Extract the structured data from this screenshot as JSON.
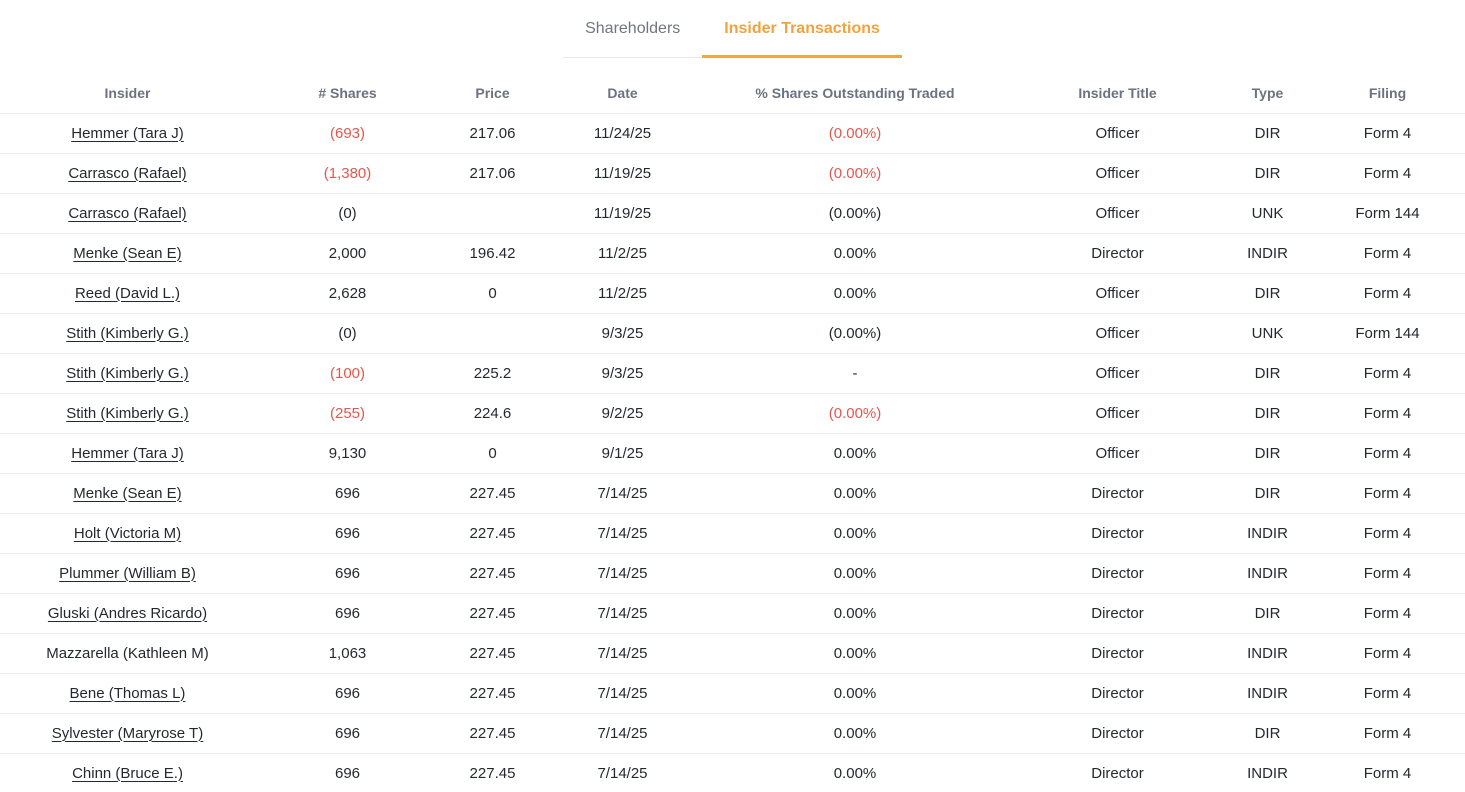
{
  "colors": {
    "accent_orange": "#f2a33d",
    "negative_red": "#e8564b",
    "text_dark": "#24292f",
    "header_gray": "#6b7280",
    "inactive_tab_gray": "#6f7680",
    "row_border": "#e9ebee"
  },
  "tabs": [
    {
      "label": "Shareholders",
      "active": false
    },
    {
      "label": "Insider Transactions",
      "active": true
    }
  ],
  "table": {
    "columns": [
      "Insider",
      "# Shares",
      "Price",
      "Date",
      "% Shares Outstanding Traded",
      "Insider Title",
      "Type",
      "Filing"
    ],
    "rows": [
      {
        "insider": "Hemmer (Tara J)",
        "link": true,
        "shares": "(693)",
        "shares_negative": true,
        "price": "217.06",
        "date": "11/24/25",
        "pct": "(0.00%)",
        "pct_negative": true,
        "insider_title": "Officer",
        "type": "DIR",
        "filing": "Form 4"
      },
      {
        "insider": "Carrasco (Rafael)",
        "link": true,
        "shares": "(1,380)",
        "shares_negative": true,
        "price": "217.06",
        "date": "11/19/25",
        "pct": "(0.00%)",
        "pct_negative": true,
        "insider_title": "Officer",
        "type": "DIR",
        "filing": "Form 4"
      },
      {
        "insider": "Carrasco (Rafael)",
        "link": true,
        "shares": "(0)",
        "shares_negative": false,
        "price": "",
        "date": "11/19/25",
        "pct": "(0.00%)",
        "pct_negative": false,
        "insider_title": "Officer",
        "type": "UNK",
        "filing": "Form 144"
      },
      {
        "insider": "Menke (Sean E)",
        "link": true,
        "shares": "2,000",
        "shares_negative": false,
        "price": "196.42",
        "date": "11/2/25",
        "pct": "0.00%",
        "pct_negative": false,
        "insider_title": "Director",
        "type": "INDIR",
        "filing": "Form 4"
      },
      {
        "insider": "Reed (David L.)",
        "link": true,
        "shares": "2,628",
        "shares_negative": false,
        "price": "0",
        "date": "11/2/25",
        "pct": "0.00%",
        "pct_negative": false,
        "insider_title": "Officer",
        "type": "DIR",
        "filing": "Form 4"
      },
      {
        "insider": "Stith (Kimberly G.)",
        "link": true,
        "shares": "(0)",
        "shares_negative": false,
        "price": "",
        "date": "9/3/25",
        "pct": "(0.00%)",
        "pct_negative": false,
        "insider_title": "Officer",
        "type": "UNK",
        "filing": "Form 144"
      },
      {
        "insider": "Stith (Kimberly G.)",
        "link": true,
        "shares": "(100)",
        "shares_negative": true,
        "price": "225.2",
        "date": "9/3/25",
        "pct": "-",
        "pct_negative": false,
        "insider_title": "Officer",
        "type": "DIR",
        "filing": "Form 4"
      },
      {
        "insider": "Stith (Kimberly G.)",
        "link": true,
        "shares": "(255)",
        "shares_negative": true,
        "price": "224.6",
        "date": "9/2/25",
        "pct": "(0.00%)",
        "pct_negative": true,
        "insider_title": "Officer",
        "type": "DIR",
        "filing": "Form 4"
      },
      {
        "insider": "Hemmer (Tara J)",
        "link": true,
        "shares": "9,130",
        "shares_negative": false,
        "price": "0",
        "date": "9/1/25",
        "pct": "0.00%",
        "pct_negative": false,
        "insider_title": "Officer",
        "type": "DIR",
        "filing": "Form 4"
      },
      {
        "insider": "Menke (Sean E)",
        "link": true,
        "shares": "696",
        "shares_negative": false,
        "price": "227.45",
        "date": "7/14/25",
        "pct": "0.00%",
        "pct_negative": false,
        "insider_title": "Director",
        "type": "DIR",
        "filing": "Form 4"
      },
      {
        "insider": "Holt (Victoria M)",
        "link": true,
        "shares": "696",
        "shares_negative": false,
        "price": "227.45",
        "date": "7/14/25",
        "pct": "0.00%",
        "pct_negative": false,
        "insider_title": "Director",
        "type": "INDIR",
        "filing": "Form 4"
      },
      {
        "insider": "Plummer (William B)",
        "link": true,
        "shares": "696",
        "shares_negative": false,
        "price": "227.45",
        "date": "7/14/25",
        "pct": "0.00%",
        "pct_negative": false,
        "insider_title": "Director",
        "type": "INDIR",
        "filing": "Form 4"
      },
      {
        "insider": "Gluski (Andres Ricardo)",
        "link": true,
        "shares": "696",
        "shares_negative": false,
        "price": "227.45",
        "date": "7/14/25",
        "pct": "0.00%",
        "pct_negative": false,
        "insider_title": "Director",
        "type": "DIR",
        "filing": "Form 4"
      },
      {
        "insider": "Mazzarella (Kathleen M)",
        "link": false,
        "shares": "1,063",
        "shares_negative": false,
        "price": "227.45",
        "date": "7/14/25",
        "pct": "0.00%",
        "pct_negative": false,
        "insider_title": "Director",
        "type": "INDIR",
        "filing": "Form 4"
      },
      {
        "insider": "Bene (Thomas L)",
        "link": true,
        "shares": "696",
        "shares_negative": false,
        "price": "227.45",
        "date": "7/14/25",
        "pct": "0.00%",
        "pct_negative": false,
        "insider_title": "Director",
        "type": "INDIR",
        "filing": "Form 4"
      },
      {
        "insider": "Sylvester (Maryrose T)",
        "link": true,
        "shares": "696",
        "shares_negative": false,
        "price": "227.45",
        "date": "7/14/25",
        "pct": "0.00%",
        "pct_negative": false,
        "insider_title": "Director",
        "type": "DIR",
        "filing": "Form 4"
      },
      {
        "insider": "Chinn (Bruce E.)",
        "link": true,
        "shares": "696",
        "shares_negative": false,
        "price": "227.45",
        "date": "7/14/25",
        "pct": "0.00%",
        "pct_negative": false,
        "insider_title": "Director",
        "type": "INDIR",
        "filing": "Form 4"
      }
    ]
  }
}
